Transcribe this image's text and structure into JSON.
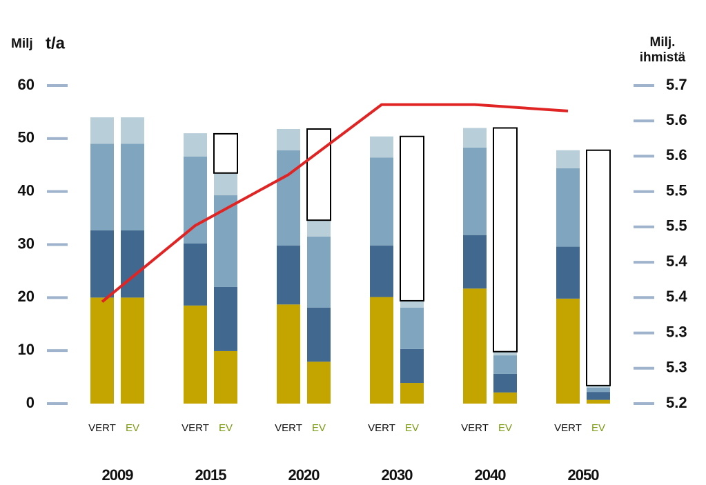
{
  "chart_data": {
    "type": "bar",
    "stacked": true,
    "ylabel": "Milj",
    "ylabel_unit": "t/a",
    "y2label": [
      "Milj.",
      "ihmistä"
    ],
    "groups": [
      "2009",
      "2015",
      "2020",
      "2030",
      "2040",
      "2050"
    ],
    "categories": [
      "VERT",
      "EV",
      "VERT",
      "EV",
      "VERT",
      "EV",
      "VERT",
      "EV",
      "VERT",
      "EV",
      "VERT",
      "EV"
    ],
    "category_colors": [
      "#111111",
      "#7a9a10"
    ],
    "series": [
      {
        "color": "#c4a500",
        "values": [
          20,
          20,
          18.5,
          9.9,
          18.7,
          7.9,
          20.1,
          3.9,
          21.7,
          2.1,
          19.8,
          0.7
        ]
      },
      {
        "color": "#41688f",
        "values": [
          12.7,
          12.7,
          11.7,
          12.1,
          11.1,
          10.2,
          9.7,
          6.4,
          10.1,
          3.5,
          9.8,
          1.5
        ]
      },
      {
        "color": "#80a6bf",
        "values": [
          16.3,
          16.3,
          16.4,
          17.3,
          18.0,
          13.4,
          16.6,
          7.8,
          16.5,
          3.5,
          14.8,
          0.8
        ]
      },
      {
        "color": "#b8ced9",
        "values": [
          5.0,
          5.0,
          4.4,
          4.2,
          4.0,
          3.1,
          4.0,
          1.3,
          3.7,
          0.7,
          3.4,
          0.4
        ]
      },
      {
        "color": "#ffffff",
        "edgecolor": "#000000",
        "values": [
          null,
          null,
          null,
          7.4,
          null,
          17.2,
          null,
          31.0,
          null,
          42.2,
          null,
          44.4
        ]
      }
    ],
    "line": {
      "color": "#e02424",
      "axis": "y2",
      "values": [
        5.36,
        5.48,
        5.56,
        5.67,
        5.67,
        5.66
      ]
    },
    "ylim": [
      0,
      60
    ],
    "yticks": [
      0,
      10,
      20,
      30,
      40,
      50,
      60
    ],
    "y2lim": [
      5.2,
      5.7
    ],
    "y2ticks": [
      {
        "value": 5.2,
        "label": "5.2"
      },
      {
        "value": 5.2556,
        "label": "5.3"
      },
      {
        "value": 5.3111,
        "label": "5.3"
      },
      {
        "value": 5.3667,
        "label": "5.4"
      },
      {
        "value": 5.4222,
        "label": "5.4"
      },
      {
        "value": 5.4778,
        "label": "5.5"
      },
      {
        "value": 5.5333,
        "label": "5.5"
      },
      {
        "value": 5.5889,
        "label": "5.6"
      },
      {
        "value": 5.6444,
        "label": "5.6"
      },
      {
        "value": 5.7,
        "label": "5.7"
      }
    ],
    "tick_color": "#9fb4cc"
  }
}
